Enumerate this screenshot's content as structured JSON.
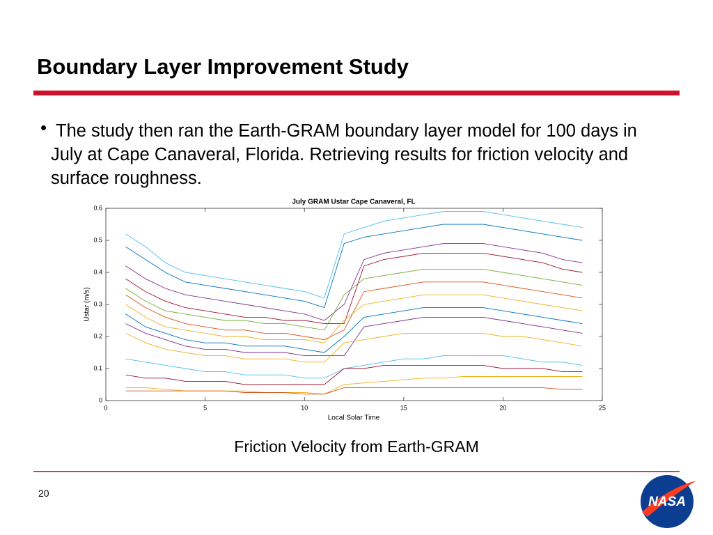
{
  "header": {
    "title": "Boundary Layer Improvement Study"
  },
  "body": {
    "bullet": "The study then ran the Earth-GRAM boundary layer model for 100 days in July at Cape Canaveral, Florida.  Retrieving results for friction velocity and surface roughness."
  },
  "chart_data": {
    "type": "line",
    "title": "July GRAM Ustar Cape Canaveral, FL",
    "x_label": "Local Solar Time",
    "y_label": "Ustar (m/s)",
    "x": [
      1,
      2,
      3,
      4,
      5,
      6,
      7,
      8,
      9,
      10,
      11,
      12,
      13,
      14,
      15,
      16,
      17,
      18,
      19,
      20,
      21,
      22,
      23,
      24
    ],
    "xlim": [
      0,
      25
    ],
    "xticks": [
      0,
      5,
      10,
      15,
      20,
      25
    ],
    "ylim": [
      0,
      0.6
    ],
    "yticks": [
      0,
      0.1,
      0.2,
      0.3,
      0.4,
      0.5,
      0.6
    ],
    "grid": false,
    "series": [
      {
        "color": "#4dbeee",
        "values": [
          0.52,
          0.48,
          0.43,
          0.4,
          0.39,
          0.38,
          0.37,
          0.36,
          0.35,
          0.34,
          0.32,
          0.52,
          0.54,
          0.56,
          0.57,
          0.58,
          0.59,
          0.59,
          0.59,
          0.58,
          0.57,
          0.56,
          0.55,
          0.54
        ]
      },
      {
        "color": "#0072bd",
        "values": [
          0.48,
          0.44,
          0.4,
          0.37,
          0.36,
          0.35,
          0.34,
          0.33,
          0.32,
          0.31,
          0.29,
          0.49,
          0.51,
          0.52,
          0.53,
          0.54,
          0.55,
          0.55,
          0.55,
          0.54,
          0.53,
          0.52,
          0.51,
          0.5
        ]
      },
      {
        "color": "#7e2f8e",
        "values": [
          0.42,
          0.38,
          0.35,
          0.33,
          0.32,
          0.31,
          0.3,
          0.29,
          0.28,
          0.27,
          0.25,
          0.3,
          0.44,
          0.46,
          0.47,
          0.48,
          0.49,
          0.49,
          0.49,
          0.48,
          0.47,
          0.46,
          0.44,
          0.43
        ]
      },
      {
        "color": "#a2142f",
        "values": [
          0.38,
          0.34,
          0.31,
          0.29,
          0.28,
          0.27,
          0.26,
          0.26,
          0.25,
          0.25,
          0.24,
          0.24,
          0.42,
          0.44,
          0.45,
          0.46,
          0.46,
          0.46,
          0.46,
          0.45,
          0.44,
          0.43,
          0.41,
          0.4
        ]
      },
      {
        "color": "#77ac30",
        "values": [
          0.35,
          0.31,
          0.28,
          0.27,
          0.26,
          0.25,
          0.25,
          0.24,
          0.24,
          0.23,
          0.22,
          0.33,
          0.38,
          0.39,
          0.4,
          0.41,
          0.41,
          0.41,
          0.41,
          0.4,
          0.39,
          0.38,
          0.37,
          0.36
        ]
      },
      {
        "color": "#d95319",
        "values": [
          0.33,
          0.29,
          0.26,
          0.24,
          0.23,
          0.22,
          0.22,
          0.21,
          0.21,
          0.2,
          0.19,
          0.22,
          0.34,
          0.35,
          0.36,
          0.37,
          0.37,
          0.37,
          0.37,
          0.36,
          0.35,
          0.34,
          0.33,
          0.32
        ]
      },
      {
        "color": "#edb120",
        "values": [
          0.3,
          0.26,
          0.23,
          0.22,
          0.21,
          0.2,
          0.2,
          0.19,
          0.19,
          0.19,
          0.18,
          0.25,
          0.3,
          0.31,
          0.32,
          0.33,
          0.33,
          0.33,
          0.33,
          0.32,
          0.31,
          0.3,
          0.29,
          0.28
        ]
      },
      {
        "color": "#0072bd",
        "values": [
          0.27,
          0.23,
          0.21,
          0.19,
          0.18,
          0.18,
          0.17,
          0.17,
          0.17,
          0.16,
          0.15,
          0.2,
          0.26,
          0.27,
          0.28,
          0.29,
          0.29,
          0.29,
          0.29,
          0.28,
          0.27,
          0.26,
          0.25,
          0.24
        ]
      },
      {
        "color": "#7e2f8e",
        "values": [
          0.24,
          0.21,
          0.19,
          0.17,
          0.16,
          0.16,
          0.15,
          0.15,
          0.15,
          0.14,
          0.14,
          0.14,
          0.23,
          0.24,
          0.25,
          0.26,
          0.26,
          0.26,
          0.26,
          0.25,
          0.24,
          0.23,
          0.22,
          0.21
        ]
      },
      {
        "color": "#edb120",
        "values": [
          0.21,
          0.18,
          0.16,
          0.15,
          0.14,
          0.14,
          0.13,
          0.13,
          0.13,
          0.12,
          0.12,
          0.18,
          0.19,
          0.2,
          0.21,
          0.21,
          0.21,
          0.21,
          0.21,
          0.2,
          0.2,
          0.19,
          0.18,
          0.17
        ]
      },
      {
        "color": "#4dbeee",
        "values": [
          0.13,
          0.12,
          0.11,
          0.1,
          0.09,
          0.09,
          0.08,
          0.08,
          0.08,
          0.07,
          0.07,
          0.1,
          0.11,
          0.12,
          0.13,
          0.13,
          0.14,
          0.14,
          0.14,
          0.14,
          0.13,
          0.12,
          0.12,
          0.11
        ]
      },
      {
        "color": "#a2142f",
        "values": [
          0.08,
          0.07,
          0.07,
          0.06,
          0.06,
          0.06,
          0.05,
          0.05,
          0.05,
          0.05,
          0.05,
          0.1,
          0.1,
          0.11,
          0.11,
          0.11,
          0.11,
          0.11,
          0.11,
          0.1,
          0.1,
          0.1,
          0.09,
          0.09
        ]
      },
      {
        "color": "#edb120",
        "values": [
          0.04,
          0.04,
          0.035,
          0.03,
          0.03,
          0.03,
          0.03,
          0.025,
          0.025,
          0.025,
          0.02,
          0.05,
          0.055,
          0.06,
          0.065,
          0.07,
          0.07,
          0.075,
          0.075,
          0.075,
          0.075,
          0.075,
          0.075,
          0.075
        ]
      },
      {
        "color": "#d95319",
        "values": [
          0.03,
          0.03,
          0.03,
          0.03,
          0.03,
          0.03,
          0.025,
          0.025,
          0.025,
          0.02,
          0.02,
          0.04,
          0.04,
          0.04,
          0.04,
          0.04,
          0.04,
          0.04,
          0.04,
          0.04,
          0.04,
          0.04,
          0.035,
          0.035
        ]
      }
    ]
  },
  "caption": "Friction Velocity from Earth-GRAM",
  "footer": {
    "page_number": "20",
    "logo_text": "NASA"
  }
}
